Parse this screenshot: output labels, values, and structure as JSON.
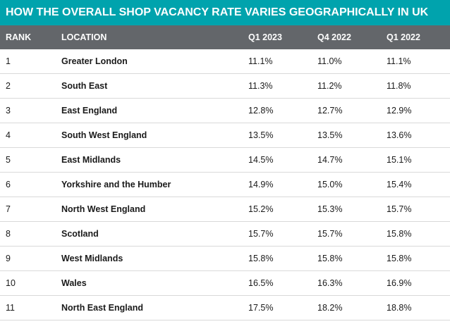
{
  "title": "HOW THE OVERALL SHOP VACANCY RATE VARIES GEOGRAPHICALLY IN UK",
  "columns": {
    "rank": "RANK",
    "location": "LOCATION",
    "q1_2023": "Q1 2023",
    "q4_2022": "Q4 2022",
    "q1_2022": "Q1 2022"
  },
  "rows": [
    {
      "rank": "1",
      "location": "Greater London",
      "q1_2023": "11.1%",
      "q4_2022": "11.0%",
      "q1_2022": "11.1%"
    },
    {
      "rank": "2",
      "location": "South East",
      "q1_2023": "11.3%",
      "q4_2022": "11.2%",
      "q1_2022": "11.8%"
    },
    {
      "rank": "3",
      "location": "East England",
      "q1_2023": "12.8%",
      "q4_2022": "12.7%",
      "q1_2022": "12.9%"
    },
    {
      "rank": "4",
      "location": "South West England",
      "q1_2023": "13.5%",
      "q4_2022": "13.5%",
      "q1_2022": "13.6%"
    },
    {
      "rank": "5",
      "location": "East Midlands",
      "q1_2023": "14.5%",
      "q4_2022": "14.7%",
      "q1_2022": "15.1%"
    },
    {
      "rank": "6",
      "location": "Yorkshire and the Humber",
      "q1_2023": "14.9%",
      "q4_2022": "15.0%",
      "q1_2022": "15.4%"
    },
    {
      "rank": "7",
      "location": "North West England",
      "q1_2023": "15.2%",
      "q4_2022": "15.3%",
      "q1_2022": "15.7%"
    },
    {
      "rank": "8",
      "location": "Scotland",
      "q1_2023": "15.7%",
      "q4_2022": "15.7%",
      "q1_2022": "15.8%"
    },
    {
      "rank": "9",
      "location": "West Midlands",
      "q1_2023": "15.8%",
      "q4_2022": "15.8%",
      "q1_2022": "15.8%"
    },
    {
      "rank": "10",
      "location": "Wales",
      "q1_2023": "16.5%",
      "q4_2022": "16.3%",
      "q1_2022": "16.9%"
    },
    {
      "rank": "11",
      "location": "North East England",
      "q1_2023": "17.5%",
      "q4_2022": "18.2%",
      "q1_2022": "18.8%"
    }
  ]
}
